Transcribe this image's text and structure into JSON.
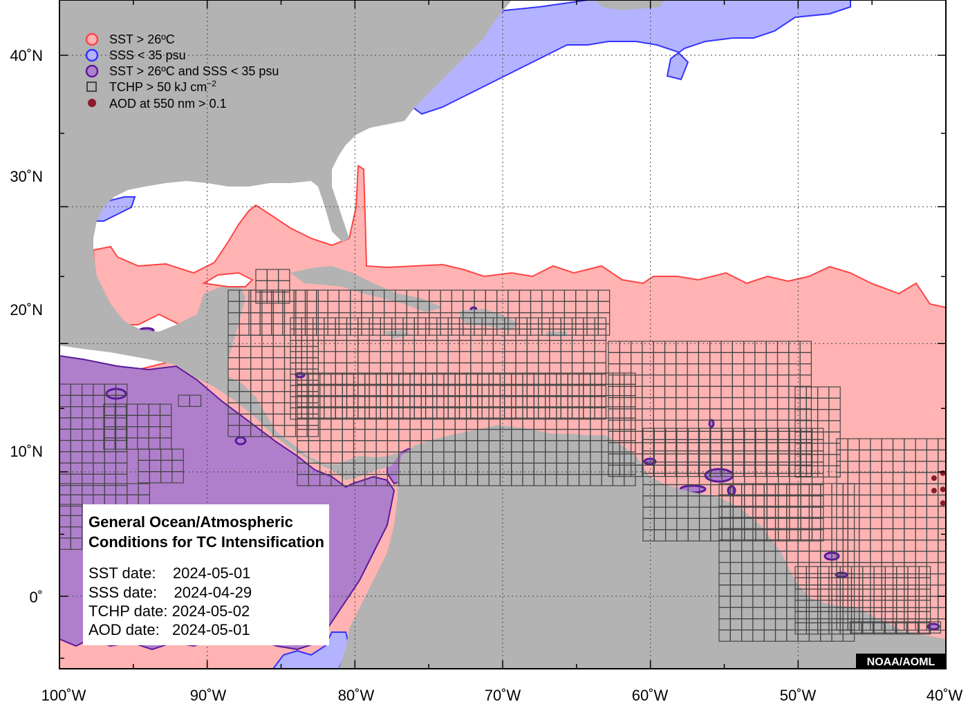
{
  "map": {
    "longitude_labels": [
      "100˚W",
      "90˚W",
      "80˚W",
      "70˚W",
      "60˚W",
      "50˚W",
      "40˚W"
    ],
    "latitude_labels": [
      "40˚N",
      "30˚N",
      "20˚N",
      "10˚N",
      "0˚"
    ],
    "extent": {
      "lon_min": -100,
      "lon_max": -40,
      "lat_min": -5,
      "lat_max": 44
    },
    "colors": {
      "land": "#b3b3b3",
      "ocean": "#ffffff",
      "sst": "#ffb3b3",
      "sst_edge": "#ff4444",
      "sss": "#b3b3ff",
      "sss_edge": "#3333ff",
      "both": "#b07fcc",
      "both_edge": "#5a1a9a",
      "tchp_grid": "#444444",
      "aod": "#8b1a2b"
    },
    "aod_points": [
      {
        "lon": -40.8,
        "lat": 9.5
      },
      {
        "lon": -40.2,
        "lat": 9.9
      },
      {
        "lon": -40.8,
        "lat": 8.5
      },
      {
        "lon": -40.2,
        "lat": 8.6
      },
      {
        "lon": -40.2,
        "lat": 7.5
      }
    ]
  },
  "legend": {
    "items": [
      {
        "label": "SST > 26ºC",
        "icon": "sst-circle-icon"
      },
      {
        "label": "SSS < 35 psu",
        "icon": "sss-circle-icon"
      },
      {
        "label": "SST > 26ºC and SSS < 35 psu",
        "icon": "combined-circle-icon"
      },
      {
        "label": "TCHP > 50 kJ cm",
        "superscript": "−2",
        "icon": "tchp-square-icon"
      },
      {
        "label": "AOD at 550 nm > 0.1",
        "icon": "aod-dot-icon"
      }
    ]
  },
  "info_box": {
    "title_line1": "General Ocean/Atmospheric",
    "title_line2": "Conditions for TC Intensification",
    "sst_date": "SST date:    2024-05-01",
    "sss_date": "SSS date:    2024-04-29",
    "tchp_date": "TCHP date: 2024-05-02",
    "aod_date": "AOD date:   2024-05-01"
  },
  "credit": "NOAA/AOML"
}
